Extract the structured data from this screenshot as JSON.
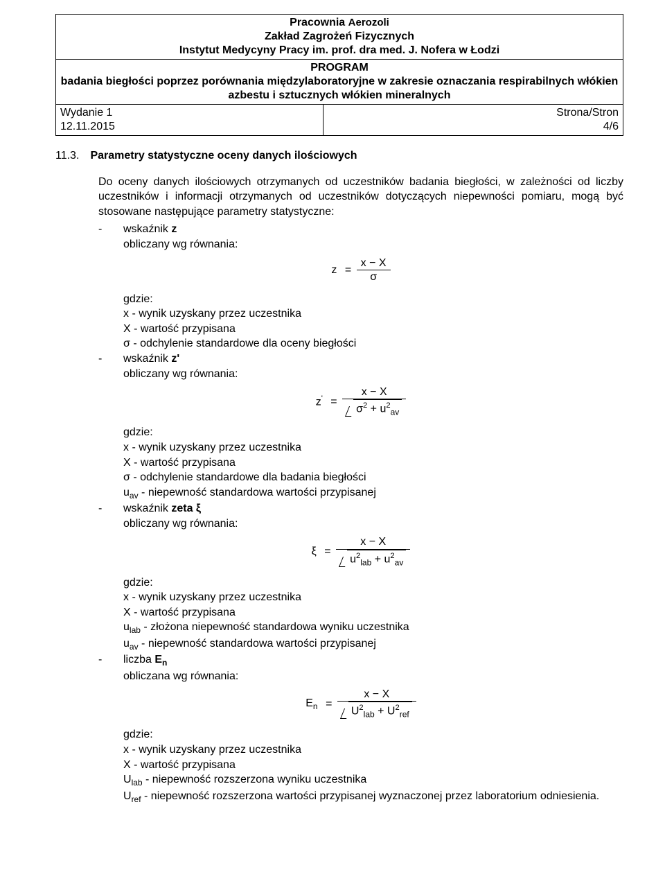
{
  "header": {
    "inst_line1_a": "Pracownia ",
    "inst_line1_b": "Aerozoli",
    "inst_line2": "Zakład Zagrożeń Fizycznych",
    "inst_line3": "Instytut Medycyny Pracy im. prof. dra med. J. Nofera w Łodzi",
    "prog_line1": "PROGRAM",
    "prog_line2": "badania biegłości poprzez porównania międzylaboratoryjne w zakresie oznaczania respirabilnych włókien azbestu i sztucznych włókien mineralnych",
    "meta_left_l1": "Wydanie 1",
    "meta_left_l2": "12.11.2015",
    "meta_right_l1": "Strona/Stron",
    "meta_right_l2": "4/6"
  },
  "section": {
    "num": "11.3.",
    "title": "Parametry statystyczne oceny danych ilościowych"
  },
  "intro": "Do oceny danych ilościowych otrzymanych od uczestników badania biegłości, w zależności od liczby uczestników i informacji otrzymanych od uczestników dotyczących niepewności pomiaru, mogą być stosowane następujące parametry statystyczne:",
  "items": {
    "z": {
      "bullet": "wskaźnik ",
      "bold": "z",
      "calc": "obliczany wg równania:",
      "lhs": "z",
      "num": "x − X",
      "den": "σ",
      "where_label": "gdzie:",
      "where": [
        "x - wynik uzyskany przez uczestnika",
        "X - wartość przypisana",
        "σ - odchylenie standardowe dla oceny biegłości"
      ]
    },
    "zp": {
      "bullet": "wskaźnik ",
      "bold": "z'",
      "calc": "obliczany wg równania:",
      "lhs": "z",
      "lhs_sup": "'",
      "num": "x − X",
      "den_a": "σ",
      "den_b": "u",
      "den_b_sub": "av",
      "where_label": "gdzie:",
      "where": [
        "x - wynik uzyskany przez uczestnika",
        "X - wartość przypisana",
        "σ - odchylenie standardowe dla badania biegłości"
      ],
      "where_uav_a": "u",
      "where_uav_sub": "av",
      "where_uav_b": " - niepewność standardowa wartości przypisanej"
    },
    "zeta": {
      "bullet": "wskaźnik ",
      "bold": "zeta ξ",
      "calc": "obliczany wg równania:",
      "lhs": "ξ",
      "num": "x − X",
      "den_a": "u",
      "den_a_sub": "lab",
      "den_b": "u",
      "den_b_sub": "av",
      "where_label": "gdzie:",
      "where": [
        "x - wynik uzyskany przez uczestnika",
        "X - wartość przypisana"
      ],
      "where_ulab_a": "u",
      "where_ulab_sub": "lab",
      "where_ulab_b": " - złożona niepewność standardowa wyniku uczestnika",
      "where_uav_a": "u",
      "where_uav_sub": "av",
      "where_uav_b": " - niepewność standardowa wartości przypisanej"
    },
    "en": {
      "bullet": "liczba ",
      "bold_a": "E",
      "bold_sub": "n",
      "calc": "obliczana wg równania:",
      "lhs": "E",
      "lhs_sub": "n",
      "num": "x − X",
      "den_a": "U",
      "den_a_sub": "lab",
      "den_b": "U",
      "den_b_sub": "ref",
      "where_label": "gdzie:",
      "where": [
        "x - wynik uzyskany przez uczestnika",
        "X - wartość przypisana"
      ],
      "where_ulab_a": "U",
      "where_ulab_sub": "lab",
      "where_ulab_b": " - niepewność rozszerzona wyniku uczestnika",
      "where_uref_a": "U",
      "where_uref_sub": "ref",
      "where_uref_b": " - niepewność rozszerzona wartości przypisanej wyznaczonej przez laboratorium odniesienia."
    }
  },
  "dash": "-",
  "plus": "+",
  "eq": "=",
  "sup2": "2"
}
